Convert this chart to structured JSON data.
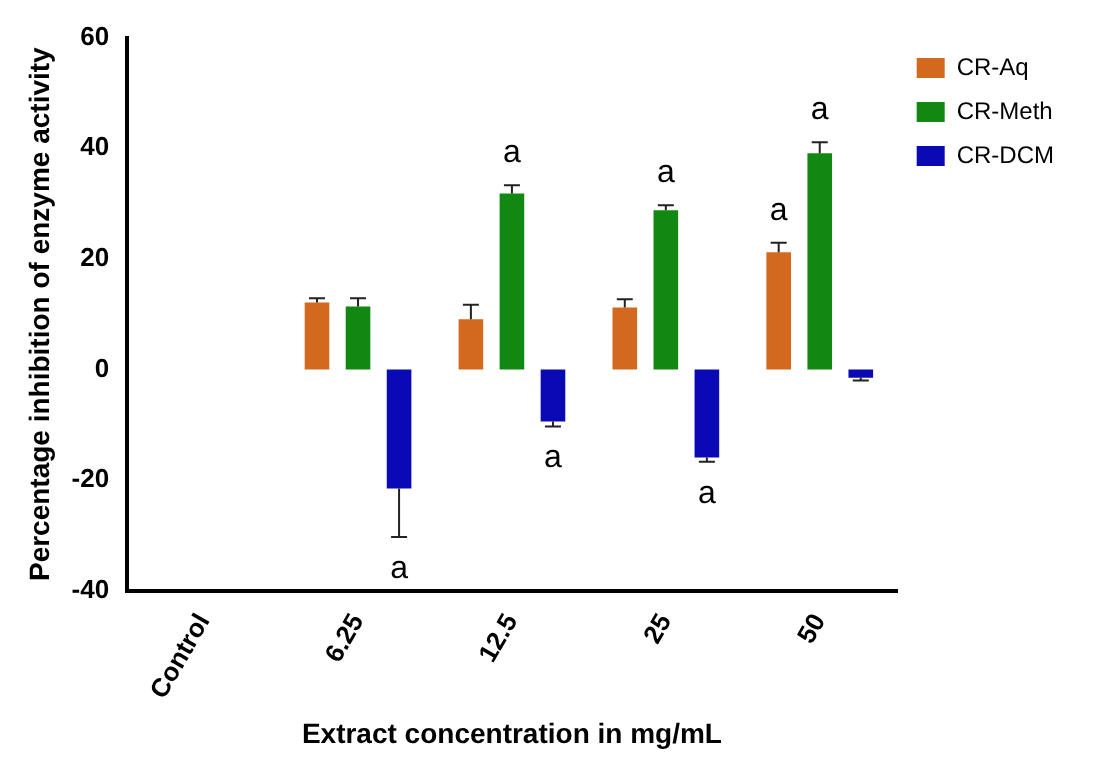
{
  "chart_data": {
    "type": "bar",
    "xlabel": "Extract concentration in mg/mL",
    "ylabel": "Percentage inhibition of enzyme activity",
    "categories": [
      "Control",
      "6.25",
      "12.5",
      "25",
      "50"
    ],
    "series": [
      {
        "name": "CR-Aq",
        "color": "#d2691e",
        "values": [
          0,
          12.1,
          9.1,
          11.2,
          21.2
        ],
        "errors": [
          null,
          [
            12.1,
            12.9
          ],
          [
            9.1,
            11.7
          ],
          [
            11.2,
            12.7
          ],
          [
            21.2,
            22.9
          ]
        ],
        "value_labels": [
          null,
          null,
          null,
          null,
          "a"
        ]
      },
      {
        "name": "CR-Meth",
        "color": "#118811",
        "values": [
          0,
          11.4,
          31.8,
          28.8,
          39.1
        ],
        "errors": [
          null,
          [
            11.4,
            12.9
          ],
          [
            31.8,
            33.3
          ],
          [
            28.8,
            29.7
          ],
          [
            39.1,
            41.1
          ]
        ],
        "value_labels": [
          null,
          null,
          "a",
          "a",
          "a"
        ]
      },
      {
        "name": "CR-DCM",
        "color": "#0a0ab4",
        "values": [
          0,
          -21.5,
          -9.4,
          -15.9,
          -1.5
        ],
        "errors": [
          null,
          [
            -30.3,
            -21.5
          ],
          [
            -10.3,
            -9.4
          ],
          [
            -16.7,
            -15.9
          ],
          [
            -2,
            -1.5
          ]
        ],
        "value_labels": [
          null,
          "a",
          "a",
          "a",
          null
        ]
      }
    ],
    "ylim": [
      -40,
      60
    ],
    "yticks": [
      -40,
      -20,
      0,
      20,
      40,
      60
    ],
    "grid": false,
    "legend": "top right"
  }
}
